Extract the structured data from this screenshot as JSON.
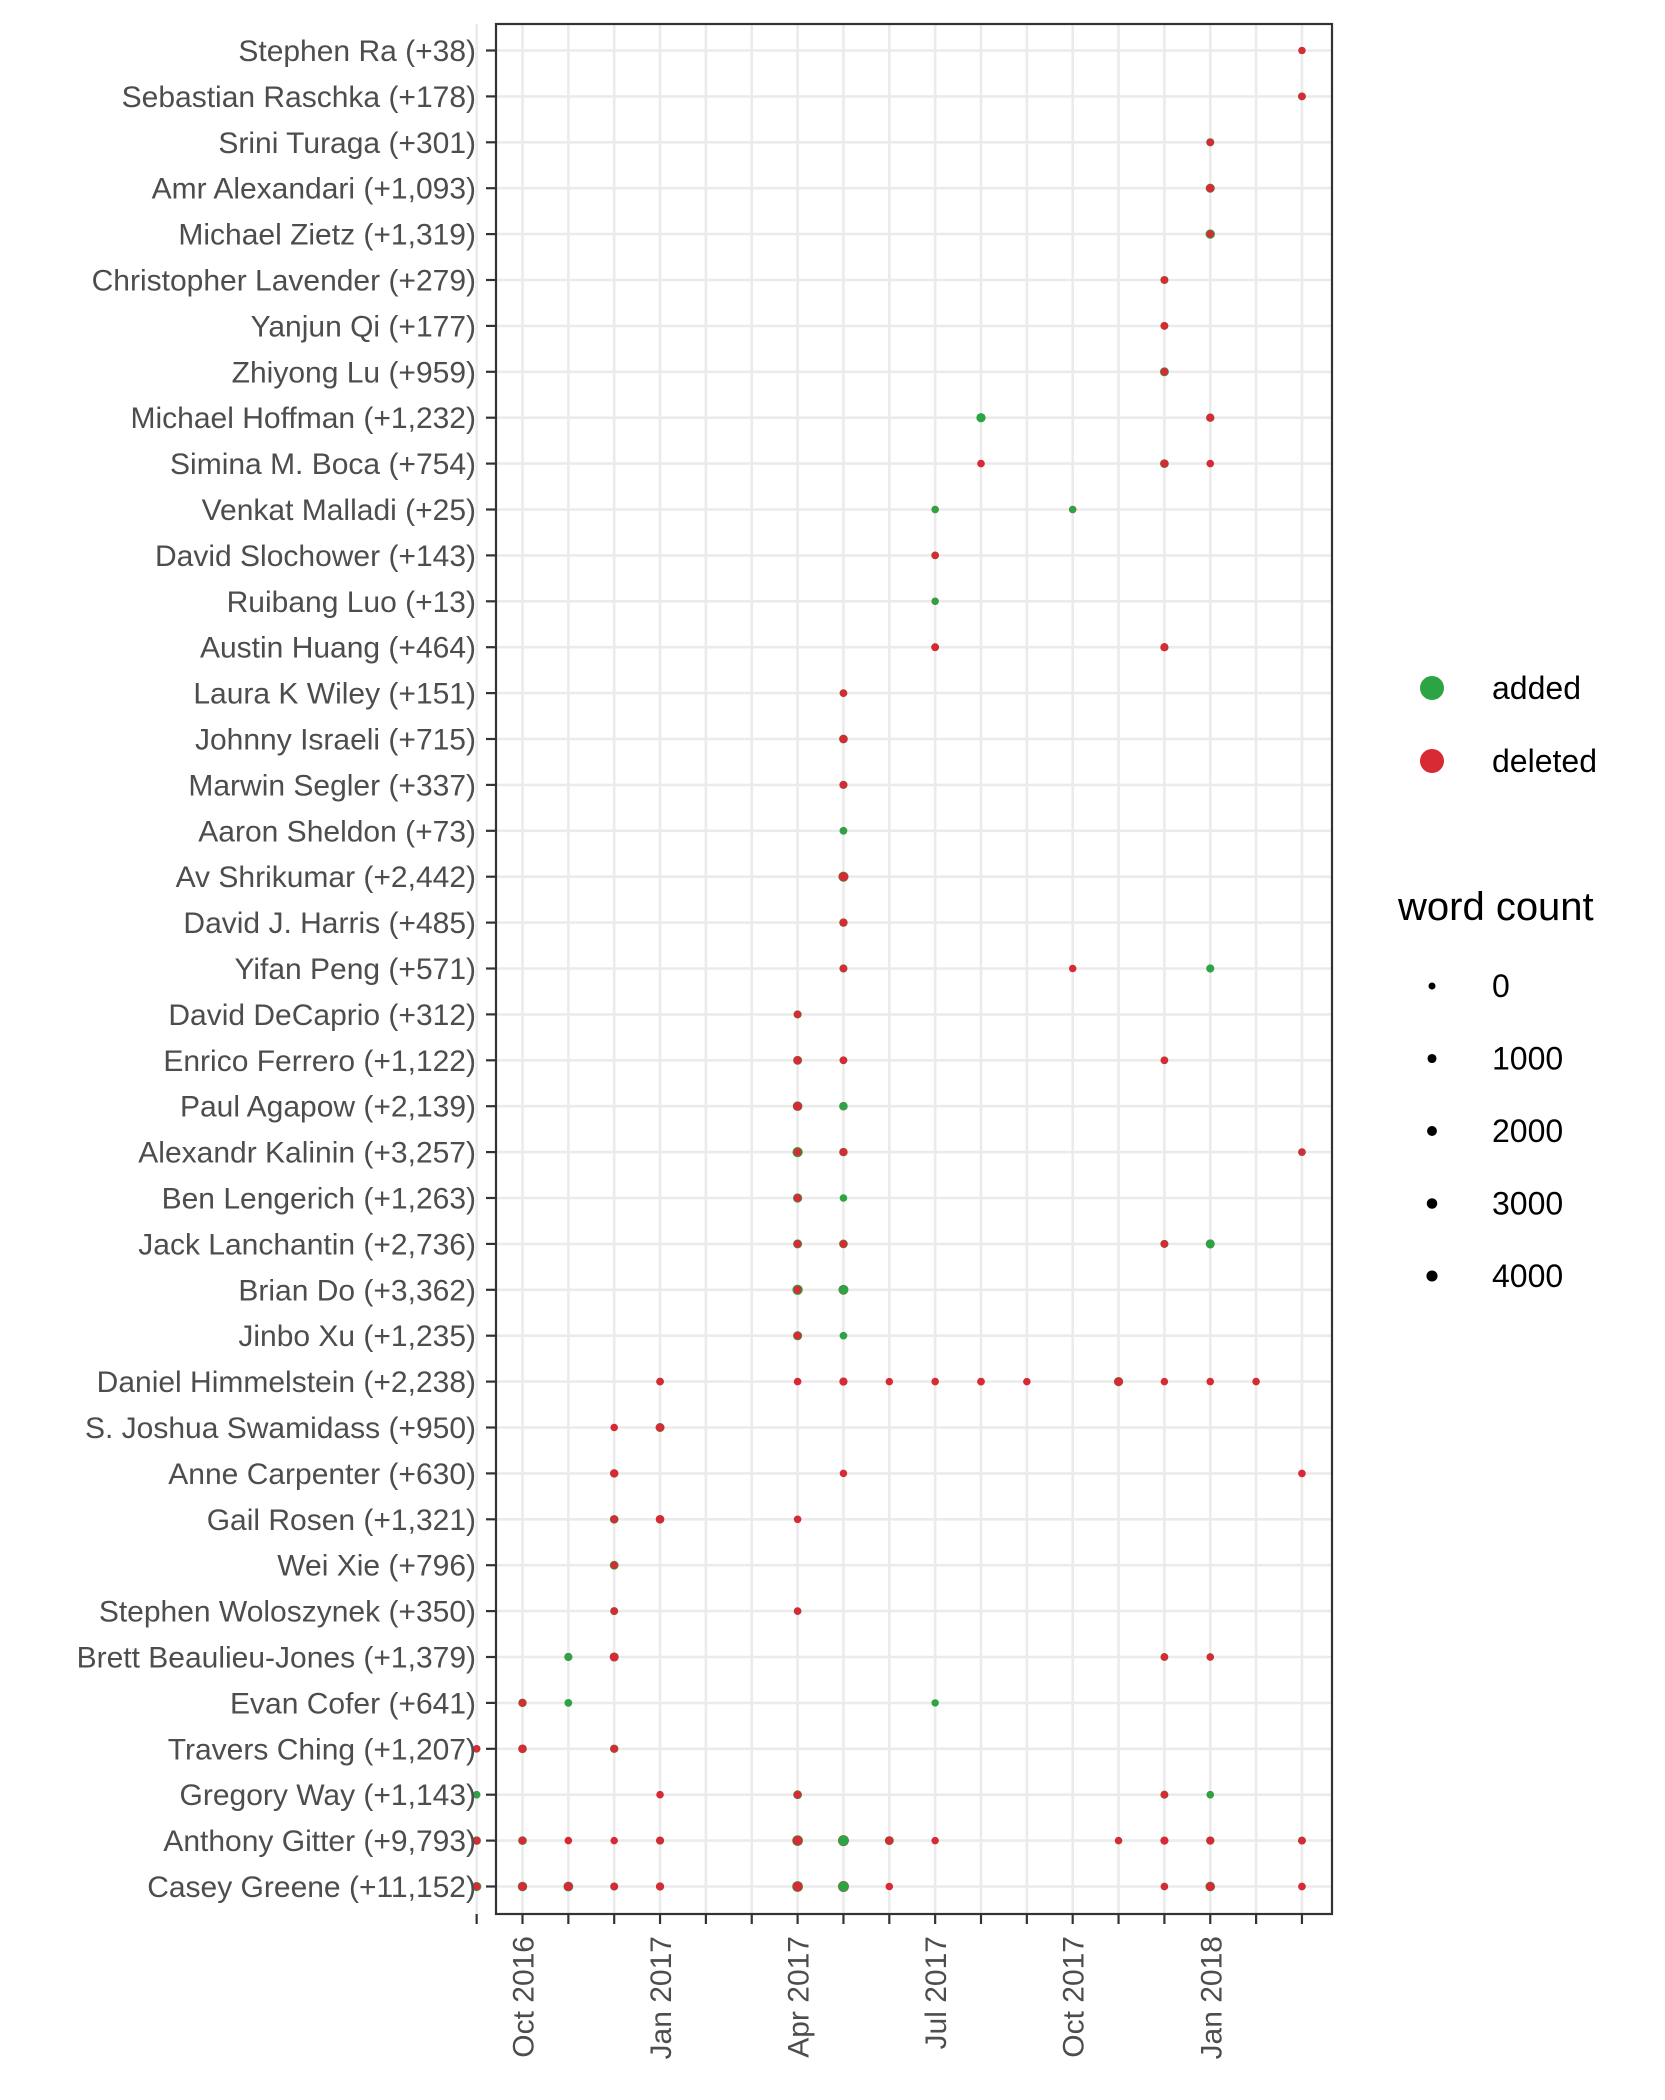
{
  "chart_data": {
    "type": "scatter",
    "x_ticks": [
      {
        "value": "2016-10",
        "label": "Oct 2016"
      },
      {
        "value": "2017-01",
        "label": "Jan 2017"
      },
      {
        "value": "2017-04",
        "label": "Apr 2017"
      },
      {
        "value": "2017-07",
        "label": "Jul 2017"
      },
      {
        "value": "2017-10",
        "label": "Oct 2017"
      },
      {
        "value": "2018-01",
        "label": "Jan 2018"
      }
    ],
    "x_range": [
      "2016-10",
      "2018-03"
    ],
    "grid": true,
    "legend_placement": "right",
    "colors": {
      "added": "#2ca444",
      "deleted": "#d62a34"
    },
    "legend": {
      "series": [
        {
          "key": "added",
          "label": "added"
        },
        {
          "key": "deleted",
          "label": "deleted"
        }
      ],
      "size_title": "word count",
      "size_entries": [
        {
          "value": 0,
          "label": "0"
        },
        {
          "value": 1000,
          "label": "1000"
        },
        {
          "value": 2000,
          "label": "2000"
        },
        {
          "value": 3000,
          "label": "3000"
        },
        {
          "value": 4000,
          "label": "4000"
        }
      ]
    },
    "contributors": [
      {
        "label": "Stephen Ra (+38)",
        "points": [
          {
            "x": "2018-03",
            "added": 30,
            "deleted": 30
          }
        ]
      },
      {
        "label": "Sebastian Raschka (+178)",
        "points": [
          {
            "x": "2018-03",
            "added": 150,
            "deleted": 120
          }
        ]
      },
      {
        "label": "Srini Turaga (+301)",
        "points": [
          {
            "x": "2018-01",
            "added": 300,
            "deleted": 80
          }
        ]
      },
      {
        "label": "Amr Alexandari (+1,093)",
        "points": [
          {
            "x": "2018-01",
            "added": 1090,
            "deleted": 400
          }
        ]
      },
      {
        "label": "Michael Zietz (+1,319)",
        "points": [
          {
            "x": "2018-01",
            "added": 1320,
            "deleted": 100
          }
        ]
      },
      {
        "label": "Christopher Lavender (+279)",
        "points": [
          {
            "x": "2017-12",
            "added": 280,
            "deleted": 80
          }
        ]
      },
      {
        "label": "Yanjun Qi (+177)",
        "points": [
          {
            "x": "2017-12",
            "added": 180,
            "deleted": 120
          }
        ]
      },
      {
        "label": "Zhiyong Lu (+959)",
        "points": [
          {
            "x": "2017-12",
            "added": 960,
            "deleted": 80
          }
        ]
      },
      {
        "label": "Michael Hoffman (+1,232)",
        "points": [
          {
            "x": "2017-08",
            "added": 1200,
            "deleted": 0
          },
          {
            "x": "2018-01",
            "added": 400,
            "deleted": 300
          }
        ]
      },
      {
        "label": "Simina M. Boca (+754)",
        "points": [
          {
            "x": "2017-08",
            "added": 0,
            "deleted": 100
          },
          {
            "x": "2017-12",
            "added": 750,
            "deleted": 200
          },
          {
            "x": "2018-01",
            "added": 0,
            "deleted": 80
          }
        ]
      },
      {
        "label": "Venkat Malladi (+25)",
        "points": [
          {
            "x": "2017-07",
            "added": 20,
            "deleted": 60
          },
          {
            "x": "2017-10",
            "added": 5,
            "deleted": 60
          }
        ]
      },
      {
        "label": "David Slochower (+143)",
        "points": [
          {
            "x": "2017-07",
            "added": 140,
            "deleted": 40
          }
        ]
      },
      {
        "label": "Ruibang Luo (+13)",
        "points": [
          {
            "x": "2017-07",
            "added": 13,
            "deleted": 40
          }
        ]
      },
      {
        "label": "Austin Huang (+464)",
        "points": [
          {
            "x": "2017-07",
            "added": 150,
            "deleted": 150
          },
          {
            "x": "2017-12",
            "added": 300,
            "deleted": 300
          }
        ]
      },
      {
        "label": "Laura K Wiley (+151)",
        "points": [
          {
            "x": "2017-05",
            "added": 150,
            "deleted": 60
          }
        ]
      },
      {
        "label": "Johnny Israeli (+715)",
        "points": [
          {
            "x": "2017-05",
            "added": 715,
            "deleted": 400
          }
        ]
      },
      {
        "label": "Marwin Segler (+337)",
        "points": [
          {
            "x": "2017-05",
            "added": 340,
            "deleted": 150
          }
        ]
      },
      {
        "label": "Aaron Sheldon (+73)",
        "points": [
          {
            "x": "2017-05",
            "added": 70,
            "deleted": 100
          }
        ]
      },
      {
        "label": "Av Shrikumar (+2,442)",
        "points": [
          {
            "x": "2017-05",
            "added": 2440,
            "deleted": 1200
          }
        ]
      },
      {
        "label": "David J. Harris (+485)",
        "points": [
          {
            "x": "2017-05",
            "added": 485,
            "deleted": 250
          }
        ]
      },
      {
        "label": "Yifan Peng (+571)",
        "points": [
          {
            "x": "2017-05",
            "added": 300,
            "deleted": 80
          },
          {
            "x": "2017-10",
            "added": 0,
            "deleted": 60
          },
          {
            "x": "2018-01",
            "added": 300,
            "deleted": 0
          }
        ]
      },
      {
        "label": "David DeCaprio (+312)",
        "points": [
          {
            "x": "2017-04",
            "added": 312,
            "deleted": 60
          }
        ]
      },
      {
        "label": "Enrico Ferrero (+1,122)",
        "points": [
          {
            "x": "2017-04",
            "added": 900,
            "deleted": 400
          },
          {
            "x": "2017-05",
            "added": 150,
            "deleted": 100
          },
          {
            "x": "2017-12",
            "added": 100,
            "deleted": 80
          }
        ]
      },
      {
        "label": "Paul Agapow (+2,139)",
        "points": [
          {
            "x": "2017-04",
            "added": 1700,
            "deleted": 800
          },
          {
            "x": "2017-05",
            "added": 450,
            "deleted": 500
          }
        ]
      },
      {
        "label": "Alexandr Kalinin (+3,257)",
        "points": [
          {
            "x": "2017-04",
            "added": 2600,
            "deleted": 200
          },
          {
            "x": "2017-05",
            "added": 550,
            "deleted": 200
          },
          {
            "x": "2018-03",
            "added": 150,
            "deleted": 40
          }
        ]
      },
      {
        "label": "Ben Lengerich (+1,263)",
        "points": [
          {
            "x": "2017-04",
            "added": 1200,
            "deleted": 150
          },
          {
            "x": "2017-05",
            "added": 80,
            "deleted": 0
          }
        ]
      },
      {
        "label": "Jack Lanchantin (+2,736)",
        "points": [
          {
            "x": "2017-04",
            "added": 1000,
            "deleted": 150
          },
          {
            "x": "2017-05",
            "added": 700,
            "deleted": 150
          },
          {
            "x": "2017-12",
            "added": 300,
            "deleted": 100
          },
          {
            "x": "2018-01",
            "added": 800,
            "deleted": 900
          }
        ]
      },
      {
        "label": "Brian Do (+3,362)",
        "points": [
          {
            "x": "2017-04",
            "added": 2600,
            "deleted": 200
          },
          {
            "x": "2017-05",
            "added": 1500,
            "deleted": 2000
          }
        ]
      },
      {
        "label": "Jinbo Xu (+1,235)",
        "points": [
          {
            "x": "2017-04",
            "added": 1100,
            "deleted": 150
          },
          {
            "x": "2017-05",
            "added": 130,
            "deleted": 0
          }
        ]
      },
      {
        "label": "Daniel Himmelstein (+2,238)",
        "points": [
          {
            "x": "2017-01",
            "added": 100,
            "deleted": 100
          },
          {
            "x": "2017-04",
            "added": 0,
            "deleted": 100
          },
          {
            "x": "2017-05",
            "added": 300,
            "deleted": 300
          },
          {
            "x": "2017-06",
            "added": 0,
            "deleted": 60
          },
          {
            "x": "2017-07",
            "added": 0,
            "deleted": 80
          },
          {
            "x": "2017-08",
            "added": 0,
            "deleted": 150
          },
          {
            "x": "2017-09",
            "added": 0,
            "deleted": 60
          },
          {
            "x": "2017-11",
            "added": 1200,
            "deleted": 700
          },
          {
            "x": "2017-12",
            "added": 0,
            "deleted": 60
          },
          {
            "x": "2018-01",
            "added": 0,
            "deleted": 80
          },
          {
            "x": "2018-02",
            "added": 0,
            "deleted": 80
          }
        ]
      },
      {
        "label": "S. Joshua Swamidass (+950)",
        "points": [
          {
            "x": "2016-12",
            "added": 0,
            "deleted": 80
          },
          {
            "x": "2017-01",
            "added": 950,
            "deleted": 600
          }
        ]
      },
      {
        "label": "Anne Carpenter (+630)",
        "points": [
          {
            "x": "2016-12",
            "added": 450,
            "deleted": 400
          },
          {
            "x": "2017-05",
            "added": 0,
            "deleted": 60
          },
          {
            "x": "2018-03",
            "added": 0,
            "deleted": 100
          }
        ]
      },
      {
        "label": "Gail Rosen (+1,321)",
        "points": [
          {
            "x": "2016-12",
            "added": 700,
            "deleted": 150
          },
          {
            "x": "2017-01",
            "added": 600,
            "deleted": 500
          },
          {
            "x": "2017-04",
            "added": 0,
            "deleted": 80
          }
        ]
      },
      {
        "label": "Wei Xie (+796)",
        "points": [
          {
            "x": "2016-12",
            "added": 796,
            "deleted": 80
          }
        ]
      },
      {
        "label": "Stephen Woloszynek (+350)",
        "points": [
          {
            "x": "2016-12",
            "added": 250,
            "deleted": 80
          },
          {
            "x": "2017-04",
            "added": 100,
            "deleted": 60
          }
        ]
      },
      {
        "label": "Brett Beaulieu-Jones (+1,379)",
        "points": [
          {
            "x": "2016-11",
            "added": 200,
            "deleted": 300
          },
          {
            "x": "2016-12",
            "added": 1000,
            "deleted": 800
          },
          {
            "x": "2017-12",
            "added": 200,
            "deleted": 80
          },
          {
            "x": "2018-01",
            "added": 60,
            "deleted": 60
          }
        ]
      },
      {
        "label": "Evan Cofer (+641)",
        "points": [
          {
            "x": "2016-10",
            "added": 500,
            "deleted": 150
          },
          {
            "x": "2016-11",
            "added": 130,
            "deleted": 0
          },
          {
            "x": "2017-07",
            "added": 40,
            "deleted": 0
          }
        ]
      },
      {
        "label": "Travers Ching (+1,207)",
        "points": [
          {
            "x": "2016-09",
            "added": 100,
            "deleted": 60
          },
          {
            "x": "2016-10",
            "added": 600,
            "deleted": 500
          },
          {
            "x": "2016-12",
            "added": 500,
            "deleted": 150
          }
        ]
      },
      {
        "label": "Gregory Way (+1,143)",
        "points": [
          {
            "x": "2016-09",
            "added": 50,
            "deleted": 60
          },
          {
            "x": "2017-01",
            "added": 0,
            "deleted": 80
          },
          {
            "x": "2017-04",
            "added": 800,
            "deleted": 150
          },
          {
            "x": "2017-12",
            "added": 250,
            "deleted": 80
          },
          {
            "x": "2018-01",
            "added": 40,
            "deleted": 60
          }
        ]
      },
      {
        "label": "Anthony Gitter (+9,793)",
        "points": [
          {
            "x": "2016-09",
            "added": 600,
            "deleted": 150
          },
          {
            "x": "2016-10",
            "added": 700,
            "deleted": 200
          },
          {
            "x": "2016-11",
            "added": 0,
            "deleted": 80
          },
          {
            "x": "2016-12",
            "added": 0,
            "deleted": 60
          },
          {
            "x": "2017-01",
            "added": 300,
            "deleted": 200
          },
          {
            "x": "2017-04",
            "added": 3300,
            "deleted": 1500
          },
          {
            "x": "2017-05",
            "added": 3000,
            "deleted": 3700
          },
          {
            "x": "2017-06",
            "added": 900,
            "deleted": 400
          },
          {
            "x": "2017-07",
            "added": 0,
            "deleted": 60
          },
          {
            "x": "2017-11",
            "added": 60,
            "deleted": 40
          },
          {
            "x": "2017-12",
            "added": 0,
            "deleted": 350
          },
          {
            "x": "2018-01",
            "added": 400,
            "deleted": 250
          },
          {
            "x": "2018-03",
            "added": 200,
            "deleted": 150
          }
        ]
      },
      {
        "label": "Casey Greene (+11,152)",
        "points": [
          {
            "x": "2016-09",
            "added": 1300,
            "deleted": 150
          },
          {
            "x": "2016-10",
            "added": 1500,
            "deleted": 800
          },
          {
            "x": "2016-11",
            "added": 1900,
            "deleted": 900
          },
          {
            "x": "2016-12",
            "added": 250,
            "deleted": 150
          },
          {
            "x": "2017-01",
            "added": 350,
            "deleted": 300
          },
          {
            "x": "2017-04",
            "added": 3400,
            "deleted": 1700
          },
          {
            "x": "2017-05",
            "added": 2600,
            "deleted": 3700
          },
          {
            "x": "2017-06",
            "added": 0,
            "deleted": 80
          },
          {
            "x": "2017-12",
            "added": 80,
            "deleted": 60
          },
          {
            "x": "2018-01",
            "added": 1700,
            "deleted": 700
          },
          {
            "x": "2018-03",
            "added": 0,
            "deleted": 120
          }
        ]
      }
    ]
  }
}
